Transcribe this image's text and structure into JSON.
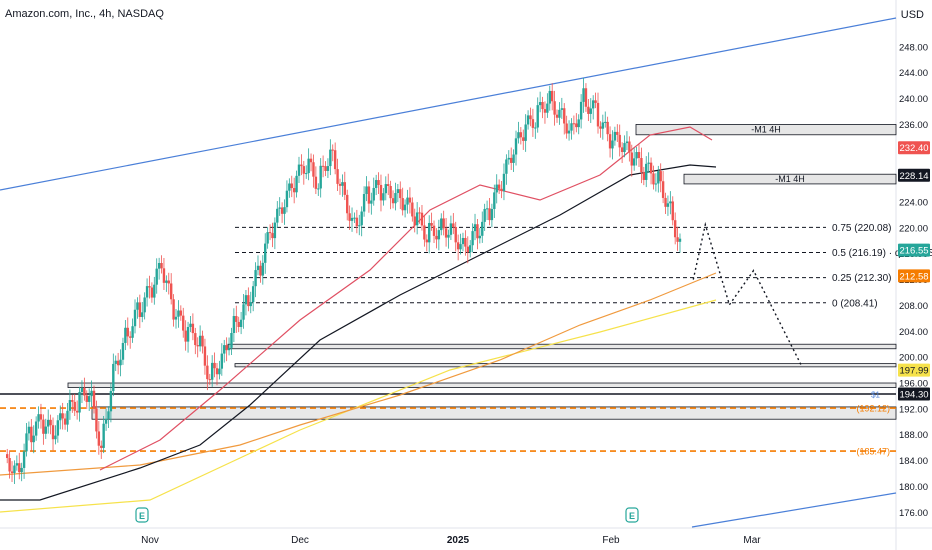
{
  "header": {
    "title": "Amazon.com, Inc., 4h, NASDAQ",
    "currency": "USD"
  },
  "colors": {
    "up": "#26a69a",
    "down": "#ef5350",
    "trend": "#4a7fd8",
    "ma_fast": "#e05063",
    "ma_slow": "#131722",
    "ma_200": "#f09a3e",
    "ma_long": "#f6e24b",
    "tag_red": "#ef5350",
    "tag_green": "#26a69a",
    "tag_orange": "#f57c00",
    "tag_yellow": "#f6e24b",
    "tag_black": "#131722"
  },
  "chart_data": {
    "type": "candlestick",
    "title": "Amazon.com, Inc., 4h, NASDAQ",
    "x_ticks": [
      "Nov",
      "Dec",
      "2025",
      "Feb",
      "Mar"
    ],
    "y_ticks": [
      176,
      180,
      184,
      188,
      192,
      196,
      200,
      204,
      208,
      212,
      216,
      220,
      224,
      228,
      232,
      236,
      240,
      244,
      248
    ],
    "ylim": [
      174.5,
      250.3
    ],
    "price_path": [
      [
        0,
        185
      ],
      [
        1,
        182
      ],
      [
        2,
        188
      ],
      [
        3,
        190
      ],
      [
        4,
        188
      ],
      [
        5,
        191
      ],
      [
        6,
        193
      ],
      [
        7,
        195
      ],
      [
        8,
        186
      ],
      [
        9,
        198
      ],
      [
        10,
        203
      ],
      [
        11,
        207
      ],
      [
        12,
        210
      ],
      [
        13,
        214
      ],
      [
        14,
        207
      ],
      [
        15,
        204
      ],
      [
        16,
        203
      ],
      [
        17,
        197
      ],
      [
        18,
        200
      ],
      [
        19,
        205
      ],
      [
        20,
        208
      ],
      [
        21,
        213
      ],
      [
        22,
        219
      ],
      [
        23,
        223
      ],
      [
        24,
        227
      ],
      [
        25,
        230
      ],
      [
        26,
        227
      ],
      [
        27,
        232
      ],
      [
        28,
        226
      ],
      [
        29,
        220
      ],
      [
        30,
        225
      ],
      [
        31,
        226
      ],
      [
        32,
        225
      ],
      [
        33,
        224
      ],
      [
        34,
        222
      ],
      [
        35,
        219
      ],
      [
        36,
        220
      ],
      [
        37,
        220
      ],
      [
        38,
        217
      ],
      [
        39,
        219
      ],
      [
        40,
        222
      ],
      [
        41,
        226
      ],
      [
        42,
        231
      ],
      [
        43,
        235
      ],
      [
        44,
        237
      ],
      [
        45,
        240
      ],
      [
        46,
        238
      ],
      [
        47,
        235
      ],
      [
        48,
        240
      ],
      [
        49,
        238
      ],
      [
        50,
        234
      ],
      [
        51,
        233
      ],
      [
        52,
        231
      ],
      [
        53,
        229
      ],
      [
        54,
        228
      ],
      [
        55,
        224
      ],
      [
        56,
        217.5
      ]
    ],
    "horizontal_levels": [
      {
        "price": 220.08,
        "label": "0.75 (220.08)"
      },
      {
        "price": 216.19,
        "label": "0.5 (216.19)"
      },
      {
        "price": 212.3,
        "label": "0.25 (212.30)"
      },
      {
        "price": 208.41,
        "label": "0 (208.41)"
      }
    ],
    "label_suffix": "q50wBISi",
    "dashed_orange_levels": [
      {
        "price": 192.12,
        "label": "(192.12)"
      },
      {
        "price": 185.47,
        "label": "(185.47)"
      }
    ],
    "zones": [
      {
        "label": "-M1 4H",
        "top": 236.0,
        "bottom": 234.4
      },
      {
        "label": "-M1 4H",
        "top": 228.3,
        "bottom": 226.8
      }
    ],
    "support_zones": [
      {
        "top": 202.0,
        "bottom": 201.3
      },
      {
        "top": 199.0,
        "bottom": 198.5
      },
      {
        "top": 196.0,
        "bottom": 195.3
      },
      {
        "top": 192.3,
        "bottom": 190.4
      }
    ],
    "line_level": {
      "price": 194.3
    },
    "line_level_tag": "$1",
    "price_tags": [
      {
        "price": 232.4,
        "text": "232.40",
        "color": "#ef5350"
      },
      {
        "price": 228.14,
        "text": "228.14",
        "color": "#131722"
      },
      {
        "price": 216.55,
        "text": "216.55",
        "color": "#26a69a"
      },
      {
        "price": 212.58,
        "text": "212.58",
        "color": "#f57c00"
      },
      {
        "price": 197.99,
        "text": "197.99",
        "color": "#f6e24b"
      },
      {
        "price": 194.3,
        "text": "194.30",
        "color": "#131722"
      }
    ],
    "projection": [
      [
        57,
        212.0
      ],
      [
        58,
        220.5
      ],
      [
        60,
        208.1
      ],
      [
        62,
        213.4
      ],
      [
        66,
        198.6
      ]
    ],
    "earnings_markers": [
      "E",
      "E"
    ]
  }
}
